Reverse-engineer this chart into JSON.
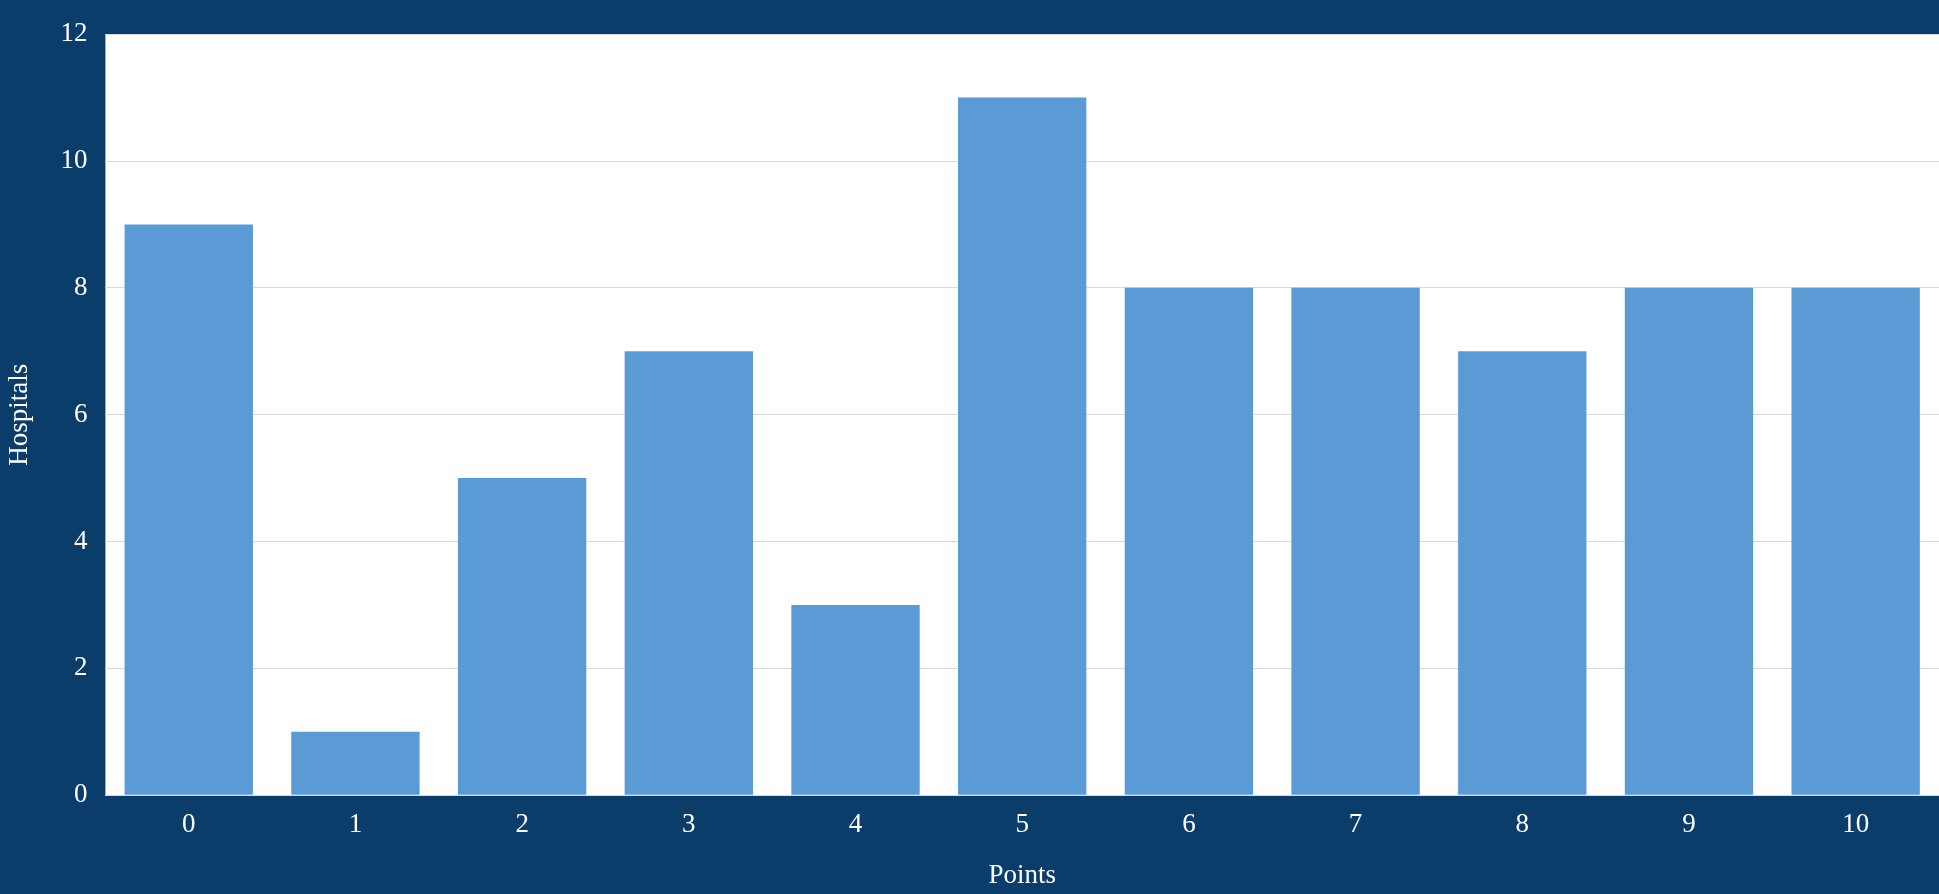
{
  "chart_data": {
    "type": "bar",
    "xlabel": "Points",
    "ylabel": "Hospitals",
    "categories": [
      "0",
      "1",
      "2",
      "3",
      "4",
      "5",
      "6",
      "7",
      "8",
      "9",
      "10"
    ],
    "values": [
      9,
      1,
      5,
      7,
      3,
      11,
      8,
      8,
      7,
      8,
      8
    ],
    "color": "#5b9bd5",
    "ylim": [
      0,
      12
    ],
    "yticks": [
      0,
      2,
      4,
      6,
      8,
      10,
      12
    ],
    "grid": "y",
    "legend": false
  }
}
